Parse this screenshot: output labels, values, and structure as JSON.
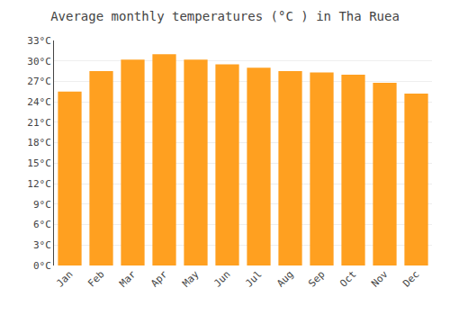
{
  "chart_data": {
    "type": "bar",
    "title": "Average monthly temperatures (°C ) in Tha Ruea",
    "categories": [
      "Jan",
      "Feb",
      "Mar",
      "Apr",
      "May",
      "Jun",
      "Jul",
      "Aug",
      "Sep",
      "Oct",
      "Nov",
      "Dec"
    ],
    "values": [
      25.5,
      28.5,
      30.2,
      31.0,
      30.2,
      29.5,
      29.0,
      28.5,
      28.3,
      28.0,
      26.8,
      25.2
    ],
    "color": "#FFA020",
    "ylim": [
      0,
      33
    ],
    "yticks": [
      {
        "value": 0,
        "label": "0°C"
      },
      {
        "value": 3,
        "label": "3°C"
      },
      {
        "value": 6,
        "label": "6°C"
      },
      {
        "value": 9,
        "label": "9°C"
      },
      {
        "value": 12,
        "label": "12°C"
      },
      {
        "value": 15,
        "label": "15°C"
      },
      {
        "value": 18,
        "label": "18°C"
      },
      {
        "value": 21,
        "label": "21°C"
      },
      {
        "value": 24,
        "label": "24°C"
      },
      {
        "value": 27,
        "label": "27°C"
      },
      {
        "value": 30,
        "label": "30°C"
      },
      {
        "value": 33,
        "label": "33°C"
      }
    ],
    "grid": true
  }
}
